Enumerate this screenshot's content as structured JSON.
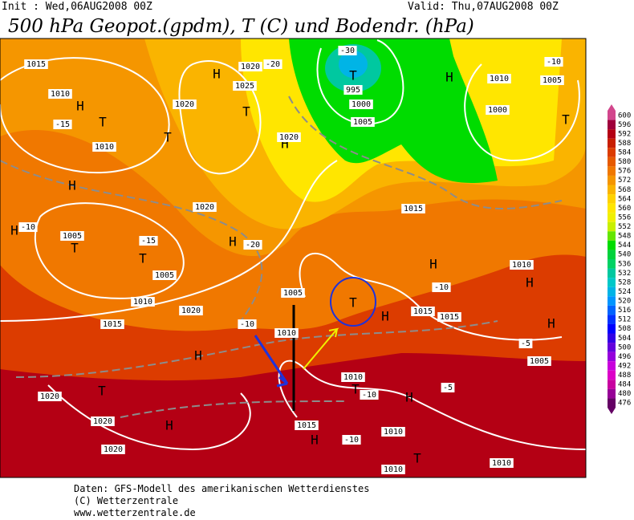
{
  "header": {
    "init": "Init : Wed,06AUG2008 00Z",
    "valid": "Valid: Thu,07AUG2008 00Z",
    "title": "500 hPa Geopot.(gpdm), T (C) und Bodendr. (hPa)"
  },
  "map": {
    "labels": [
      "1015",
      "1010",
      "H",
      "T",
      "-15",
      "1010",
      "T",
      "H",
      "1020",
      "-20",
      "1025",
      "T",
      "1020",
      "H",
      "1020",
      "T",
      "-30",
      "995",
      "1000",
      "1005",
      "H",
      "1010",
      "-10",
      "1005",
      "1000",
      "T",
      "H",
      "-10",
      "H",
      "1005",
      "T",
      "-15",
      "T",
      "1005",
      "H",
      "-20",
      "1020",
      "1015",
      "H",
      "-10",
      "1015",
      "1015",
      "T",
      "H",
      "H",
      "1020",
      "T",
      "1020",
      "H",
      "1020",
      "1015",
      "H",
      "-10",
      "1010",
      "1010",
      "T",
      "1010",
      "H",
      "1010",
      "1005",
      "H",
      "-5",
      "-5",
      "1010",
      "T",
      "H",
      "-10",
      "1015",
      "1010",
      "-10",
      "1010",
      "1005",
      "1020"
    ]
  },
  "colorbar": {
    "levels": [
      {
        "value": 600,
        "color": "#d2468c"
      },
      {
        "value": 596,
        "color": "#a0003c"
      },
      {
        "value": 592,
        "color": "#b40014"
      },
      {
        "value": 588,
        "color": "#c81e00"
      },
      {
        "value": 584,
        "color": "#dc3c00"
      },
      {
        "value": 580,
        "color": "#e65a00"
      },
      {
        "value": 576,
        "color": "#f07800"
      },
      {
        "value": 572,
        "color": "#f59600"
      },
      {
        "value": 568,
        "color": "#fab400"
      },
      {
        "value": 564,
        "color": "#ffd200"
      },
      {
        "value": 560,
        "color": "#ffe600"
      },
      {
        "value": 556,
        "color": "#f0f000"
      },
      {
        "value": 552,
        "color": "#c8f000"
      },
      {
        "value": 548,
        "color": "#64e600"
      },
      {
        "value": 544,
        "color": "#00dc00"
      },
      {
        "value": 540,
        "color": "#00d23c"
      },
      {
        "value": 536,
        "color": "#00d264"
      },
      {
        "value": 532,
        "color": "#00c8a0"
      },
      {
        "value": 528,
        "color": "#00c8c8"
      },
      {
        "value": 524,
        "color": "#00b4e6"
      },
      {
        "value": 520,
        "color": "#0096ff"
      },
      {
        "value": 516,
        "color": "#0064ff"
      },
      {
        "value": 512,
        "color": "#0032ff"
      },
      {
        "value": 508,
        "color": "#0000ff"
      },
      {
        "value": 504,
        "color": "#3200e6"
      },
      {
        "value": 500,
        "color": "#6400dc"
      },
      {
        "value": 496,
        "color": "#9600dc"
      },
      {
        "value": 492,
        "color": "#c800dc"
      },
      {
        "value": 488,
        "color": "#dc00c8"
      },
      {
        "value": 484,
        "color": "#c800a0"
      },
      {
        "value": 480,
        "color": "#960096"
      },
      {
        "value": 476,
        "color": "#640064"
      }
    ]
  },
  "footer": {
    "lines": [
      "Daten: GFS-Modell des amerikanischen Wetterdienstes",
      "(C) Wetterzentrale",
      "www.wetterzentrale.de"
    ]
  }
}
